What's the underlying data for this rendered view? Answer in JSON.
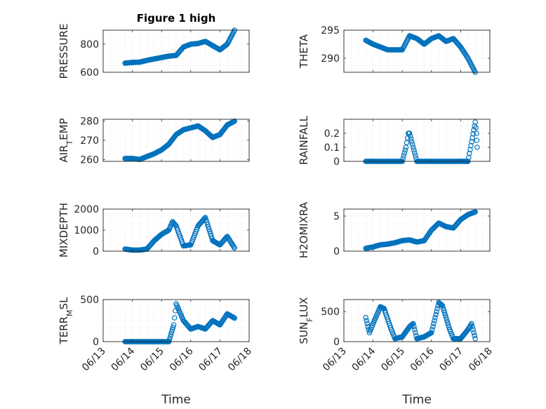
{
  "title": "Figure 1 high",
  "xlabel": "Time",
  "x_ticks": [
    "06/13",
    "06/14",
    "06/15",
    "06/16",
    "06/17",
    "06/18"
  ],
  "marker_color": "#0072BD",
  "chart_data": [
    {
      "type": "scatter",
      "ylabel": "PRESSURE",
      "ylim": [
        600,
        900
      ],
      "yticks": [
        600,
        800
      ],
      "grid": true,
      "series": [
        {
          "x": [
            "06/13 18:00",
            "06/14 00:00",
            "06/14 06:00",
            "06/14 12:00",
            "06/14 18:00",
            "06/15 00:00",
            "06/15 06:00",
            "06/15 12:00",
            "06/15 18:00",
            "06/16 00:00",
            "06/16 06:00",
            "06/16 12:00",
            "06/16 18:00",
            "06/17 00:00",
            "06/17 06:00",
            "06/17 12:00"
          ],
          "y": [
            665,
            670,
            672,
            685,
            695,
            705,
            715,
            720,
            780,
            800,
            805,
            820,
            790,
            760,
            800,
            900
          ]
        }
      ]
    },
    {
      "type": "scatter",
      "ylabel": "THETA",
      "ylim": [
        287.5,
        295
      ],
      "yticks": [
        290,
        295
      ],
      "grid": true,
      "series": [
        {
          "x": [
            "06/13 18:00",
            "06/14 00:00",
            "06/14 06:00",
            "06/14 12:00",
            "06/14 18:00",
            "06/15 00:00",
            "06/15 06:00",
            "06/15 12:00",
            "06/15 18:00",
            "06/16 00:00",
            "06/16 06:00",
            "06/16 12:00",
            "06/16 18:00",
            "06/17 00:00",
            "06/17 06:00",
            "06/17 12:00"
          ],
          "y": [
            293.2,
            292.5,
            292.0,
            291.5,
            291.5,
            291.5,
            294.0,
            293.5,
            292.5,
            293.5,
            294.0,
            293.0,
            293.5,
            292.0,
            290.0,
            287.5
          ]
        }
      ]
    },
    {
      "type": "scatter",
      "ylabel": "AIR_TEMP",
      "ylim": [
        259,
        281
      ],
      "yticks": [
        260,
        270,
        280
      ],
      "grid": true,
      "series": [
        {
          "x": [
            "06/13 18:00",
            "06/14 00:00",
            "06/14 06:00",
            "06/14 12:00",
            "06/14 18:00",
            "06/15 00:00",
            "06/15 06:00",
            "06/15 12:00",
            "06/15 18:00",
            "06/16 00:00",
            "06/16 06:00",
            "06/16 12:00",
            "06/16 18:00",
            "06/17 00:00",
            "06/17 06:00",
            "06/17 12:00"
          ],
          "y": [
            260.5,
            260.5,
            260,
            261.5,
            263,
            265,
            268,
            273,
            275.5,
            276.5,
            277.5,
            275,
            271.5,
            273,
            278,
            280
          ]
        }
      ]
    },
    {
      "type": "scatter",
      "ylabel": "RAINFALL",
      "ylim": [
        0,
        0.3
      ],
      "yticks": [
        0,
        0.1,
        0.2
      ],
      "grid": true,
      "series": [
        {
          "x": [
            "06/13 18:00",
            "06/14 00:00",
            "06/14 12:00",
            "06/15 00:00",
            "06/15 03:00",
            "06/15 05:00",
            "06/15 06:00",
            "06/15 12:00",
            "06/16 00:00",
            "06/16 12:00",
            "06/17 00:00",
            "06/17 06:00",
            "06/17 12:00",
            "06/17 13:00",
            "06/17 13:30"
          ],
          "y": [
            0,
            0,
            0,
            0,
            0.1,
            0.2,
            0.2,
            0,
            0,
            0,
            0,
            0,
            0.28,
            0.2,
            0.1
          ]
        }
      ]
    },
    {
      "type": "scatter",
      "ylabel": "MIXDEPTH",
      "ylim": [
        0,
        2000
      ],
      "yticks": [
        0,
        1000,
        2000
      ],
      "grid": true,
      "series": [
        {
          "x": [
            "06/13 18:00",
            "06/14 00:00",
            "06/14 06:00",
            "06/14 12:00",
            "06/14 18:00",
            "06/15 00:00",
            "06/15 06:00",
            "06/15 09:00",
            "06/15 12:00",
            "06/15 18:00",
            "06/16 00:00",
            "06/16 06:00",
            "06/16 12:00",
            "06/16 18:00",
            "06/17 00:00",
            "06/17 06:00",
            "06/17 12:00"
          ],
          "y": [
            100,
            50,
            50,
            100,
            500,
            800,
            1000,
            1400,
            1200,
            250,
            300,
            1200,
            1600,
            500,
            300,
            700,
            150
          ]
        }
      ]
    },
    {
      "type": "scatter",
      "ylabel": "H2OMIXRA",
      "ylim": [
        0,
        6
      ],
      "yticks": [
        0,
        5
      ],
      "grid": true,
      "series": [
        {
          "x": [
            "06/13 18:00",
            "06/14 00:00",
            "06/14 06:00",
            "06/14 12:00",
            "06/14 18:00",
            "06/15 00:00",
            "06/15 06:00",
            "06/15 12:00",
            "06/15 18:00",
            "06/16 00:00",
            "06/16 06:00",
            "06/16 12:00",
            "06/16 18:00",
            "06/17 00:00",
            "06/17 06:00",
            "06/17 12:00"
          ],
          "y": [
            0.4,
            0.6,
            0.9,
            1.0,
            1.2,
            1.5,
            1.6,
            1.3,
            1.5,
            3.0,
            4.0,
            3.5,
            3.3,
            4.5,
            5.2,
            5.6
          ]
        }
      ]
    },
    {
      "type": "scatter",
      "ylabel": "TERR_MSL",
      "ylim": [
        0,
        500
      ],
      "yticks": [
        0,
        500
      ],
      "grid": true,
      "series": [
        {
          "x": [
            "06/13 18:00",
            "06/14 00:00",
            "06/14 12:00",
            "06/15 00:00",
            "06/15 06:00",
            "06/15 10:00",
            "06/15 12:00",
            "06/15 18:00",
            "06/16 00:00",
            "06/16 06:00",
            "06/16 12:00",
            "06/16 18:00",
            "06/17 00:00",
            "06/17 06:00",
            "06/17 12:00"
          ],
          "y": [
            0,
            0,
            0,
            0,
            0,
            200,
            450,
            250,
            150,
            180,
            150,
            250,
            200,
            330,
            280
          ]
        }
      ]
    },
    {
      "type": "scatter",
      "ylabel": "SUN_FLUX",
      "ylim": [
        0,
        700
      ],
      "yticks": [
        0,
        500
      ],
      "grid": true,
      "series": [
        {
          "x": [
            "06/13 18:00",
            "06/13 21:00",
            "06/14 00:00",
            "06/14 06:00",
            "06/14 09:00",
            "06/14 15:00",
            "06/14 18:00",
            "06/15 00:00",
            "06/15 06:00",
            "06/15 09:00",
            "06/15 12:00",
            "06/15 18:00",
            "06/16 00:00",
            "06/16 06:00",
            "06/16 09:00",
            "06/16 15:00",
            "06/16 18:00",
            "06/17 00:00",
            "06/17 06:00",
            "06/17 09:00",
            "06/17 12:00"
          ],
          "y": [
            400,
            150,
            300,
            580,
            550,
            200,
            50,
            80,
            250,
            300,
            50,
            80,
            150,
            650,
            600,
            200,
            50,
            50,
            200,
            300,
            50
          ]
        }
      ]
    }
  ]
}
